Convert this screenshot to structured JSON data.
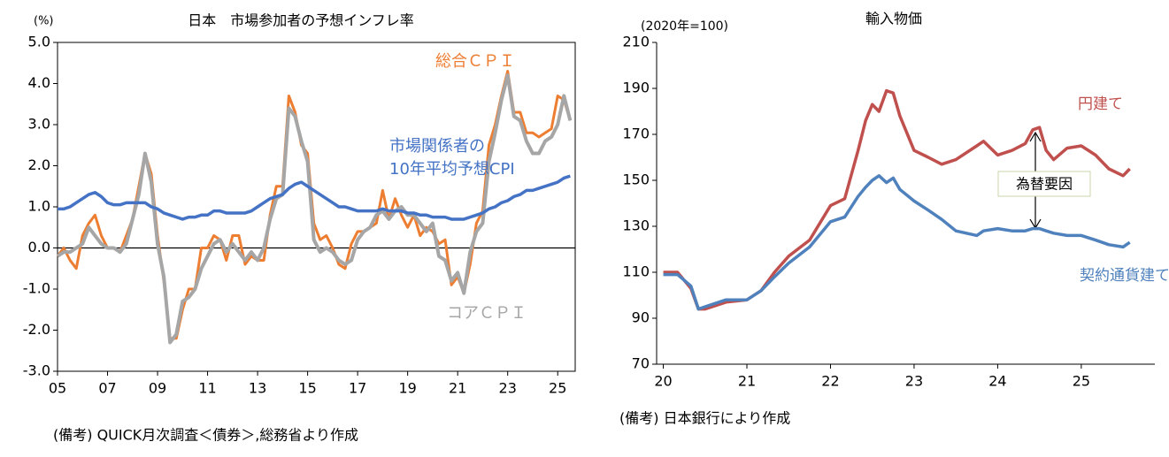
{
  "chart_data": [
    {
      "type": "line",
      "title": "日本　市場参加者の予想インフレ率",
      "y_label": "(%)",
      "note": "(備考) QUICK月次調査＜債券＞,総務省より作成",
      "x": [
        5,
        5.25,
        5.5,
        5.75,
        6,
        6.25,
        6.5,
        6.75,
        7,
        7.25,
        7.5,
        7.75,
        8,
        8.25,
        8.5,
        8.75,
        9,
        9.25,
        9.5,
        9.75,
        10,
        10.25,
        10.5,
        10.75,
        11,
        11.25,
        11.5,
        11.75,
        12,
        12.25,
        12.5,
        12.75,
        13,
        13.25,
        13.5,
        13.75,
        14,
        14.25,
        14.5,
        14.75,
        15,
        15.25,
        15.5,
        15.75,
        16,
        16.25,
        16.5,
        16.75,
        17,
        17.25,
        17.5,
        17.75,
        18,
        18.25,
        18.5,
        18.75,
        19,
        19.25,
        19.5,
        19.75,
        20,
        20.25,
        20.5,
        20.75,
        21,
        21.25,
        21.5,
        21.75,
        22,
        22.25,
        22.5,
        22.75,
        23,
        23.25,
        23.5,
        23.75,
        24,
        24.25,
        24.5,
        24.75,
        25,
        25.25,
        25.5
      ],
      "series": [
        {
          "name": "総合ＣＰＩ",
          "color": "#ed7d31",
          "width": 3,
          "values": [
            -0.2,
            0.0,
            -0.3,
            -0.5,
            0.3,
            0.6,
            0.8,
            0.3,
            0.0,
            0.0,
            -0.1,
            0.3,
            0.7,
            1.5,
            2.3,
            1.8,
            0.3,
            -0.8,
            -2.2,
            -2.2,
            -1.5,
            -1.0,
            -1.0,
            0.0,
            0.0,
            0.3,
            0.2,
            -0.3,
            0.3,
            0.3,
            -0.4,
            -0.2,
            -0.3,
            -0.3,
            0.8,
            1.5,
            1.5,
            3.7,
            3.3,
            2.5,
            2.3,
            0.6,
            0.2,
            0.3,
            0.0,
            -0.4,
            -0.5,
            0.1,
            0.4,
            0.4,
            0.5,
            0.6,
            1.4,
            0.7,
            1.2,
            0.8,
            0.5,
            0.8,
            0.3,
            0.5,
            0.4,
            0.1,
            0.2,
            -0.9,
            -0.7,
            -1.1,
            -0.4,
            0.6,
            0.9,
            2.5,
            3.0,
            3.7,
            4.3,
            3.3,
            3.3,
            2.8,
            2.8,
            2.7,
            2.8,
            2.9,
            3.7,
            3.6,
            3.1
          ]
        },
        {
          "name": "コアＣＰＩ",
          "color": "#a6a6a6",
          "width": 4,
          "values": [
            -0.2,
            -0.1,
            -0.1,
            0.0,
            0.1,
            0.5,
            0.3,
            0.1,
            0.0,
            0.0,
            -0.1,
            0.1,
            0.7,
            1.3,
            2.3,
            1.6,
            0.1,
            -0.7,
            -2.3,
            -2.1,
            -1.3,
            -1.2,
            -1.0,
            -0.5,
            -0.2,
            0.1,
            0.2,
            -0.1,
            0.1,
            -0.1,
            -0.3,
            -0.1,
            -0.3,
            0.0,
            0.7,
            1.2,
            1.3,
            3.4,
            3.2,
            2.6,
            2.1,
            0.2,
            -0.1,
            0.0,
            -0.1,
            -0.3,
            -0.4,
            -0.3,
            0.2,
            0.4,
            0.5,
            0.8,
            0.9,
            0.7,
            0.9,
            1.0,
            0.8,
            0.8,
            0.6,
            0.4,
            0.6,
            -0.2,
            -0.3,
            -0.8,
            -0.6,
            -1.1,
            -0.1,
            0.4,
            0.6,
            2.1,
            2.8,
            3.6,
            4.2,
            3.2,
            3.1,
            2.6,
            2.3,
            2.3,
            2.6,
            2.7,
            3.0,
            3.7,
            3.1
          ]
        },
        {
          "name": [
            "市場関係者の",
            "10年平均予想CPI"
          ],
          "color": "#4472c4",
          "width": 3.5,
          "values": [
            0.95,
            0.95,
            1.0,
            1.1,
            1.2,
            1.3,
            1.35,
            1.25,
            1.1,
            1.05,
            1.05,
            1.1,
            1.1,
            1.1,
            1.1,
            1.0,
            0.95,
            0.85,
            0.8,
            0.75,
            0.7,
            0.75,
            0.75,
            0.8,
            0.8,
            0.9,
            0.9,
            0.85,
            0.85,
            0.85,
            0.85,
            0.9,
            1.0,
            1.1,
            1.2,
            1.25,
            1.3,
            1.45,
            1.55,
            1.6,
            1.5,
            1.4,
            1.3,
            1.2,
            1.1,
            1.0,
            1.0,
            0.95,
            0.9,
            0.9,
            0.9,
            0.9,
            0.95,
            0.9,
            0.9,
            0.9,
            0.85,
            0.85,
            0.8,
            0.8,
            0.75,
            0.75,
            0.75,
            0.7,
            0.7,
            0.7,
            0.75,
            0.8,
            0.85,
            0.95,
            1.0,
            1.1,
            1.15,
            1.25,
            1.3,
            1.4,
            1.4,
            1.45,
            1.5,
            1.55,
            1.6,
            1.7,
            1.75
          ]
        }
      ],
      "xlim": [
        5,
        25.7
      ],
      "ylim": [
        -3,
        5
      ],
      "xticks": [
        {
          "value": 5,
          "label": "05"
        },
        {
          "value": 7,
          "label": "07"
        },
        {
          "value": 9,
          "label": "09"
        },
        11,
        13,
        15,
        17,
        19,
        21,
        23,
        25
      ],
      "yticks": [
        {
          "value": 5,
          "label": "5.0"
        },
        {
          "value": 4,
          "label": "4.0"
        },
        {
          "value": 3,
          "label": "3.0"
        },
        {
          "value": 2,
          "label": "2.0"
        },
        {
          "value": 1,
          "label": "1.0"
        },
        {
          "value": 0,
          "label": "0.0"
        },
        {
          "value": -1,
          "label": "-1.0"
        },
        {
          "value": -2,
          "label": "-2.0"
        },
        {
          "value": -3,
          "label": "-3.0"
        }
      ],
      "zero_line": true
    },
    {
      "type": "line",
      "title": "輸入物価",
      "y_label": "(2020年=100)",
      "note": "(備考) 日本銀行により作成",
      "annotation": "為替要因",
      "x": [
        20,
        20.17,
        20.33,
        20.42,
        20.5,
        20.75,
        21,
        21.17,
        21.33,
        21.5,
        21.75,
        22,
        22.17,
        22.33,
        22.42,
        22.5,
        22.58,
        22.67,
        22.75,
        22.83,
        23,
        23.17,
        23.33,
        23.5,
        23.75,
        23.83,
        24,
        24.17,
        24.33,
        24.42,
        24.5,
        24.58,
        24.67,
        24.83,
        25,
        25.17,
        25.33,
        25.5,
        25.58
      ],
      "series": [
        {
          "name": "円建て",
          "color": "#c0504d",
          "width": 3.5,
          "values": [
            110,
            110,
            103,
            94,
            94,
            97,
            98,
            102,
            110,
            117,
            124,
            139,
            142,
            163,
            176,
            183,
            180,
            189,
            188,
            178,
            163,
            160,
            157,
            159,
            165,
            167,
            161,
            163,
            166,
            172,
            173,
            163,
            159,
            164,
            165,
            161,
            155,
            152,
            155
          ]
        },
        {
          "name": "契約通貨建て",
          "color": "#4f81bd",
          "width": 3.5,
          "values": [
            109,
            109,
            104,
            94,
            95,
            98,
            98,
            102,
            108,
            114,
            121,
            132,
            134,
            143,
            147,
            150,
            152,
            149,
            151,
            146,
            141,
            137,
            133,
            128,
            126,
            128,
            129,
            128,
            128,
            129,
            129,
            128,
            127,
            126,
            126,
            124,
            122,
            121,
            123
          ]
        }
      ],
      "xlim": [
        19.92,
        25.88
      ],
      "ylim": [
        70,
        210
      ],
      "xticks": [
        20,
        21,
        22,
        23,
        24,
        25
      ],
      "yticks": [
        70,
        90,
        110,
        130,
        150,
        170,
        190,
        210
      ]
    }
  ]
}
